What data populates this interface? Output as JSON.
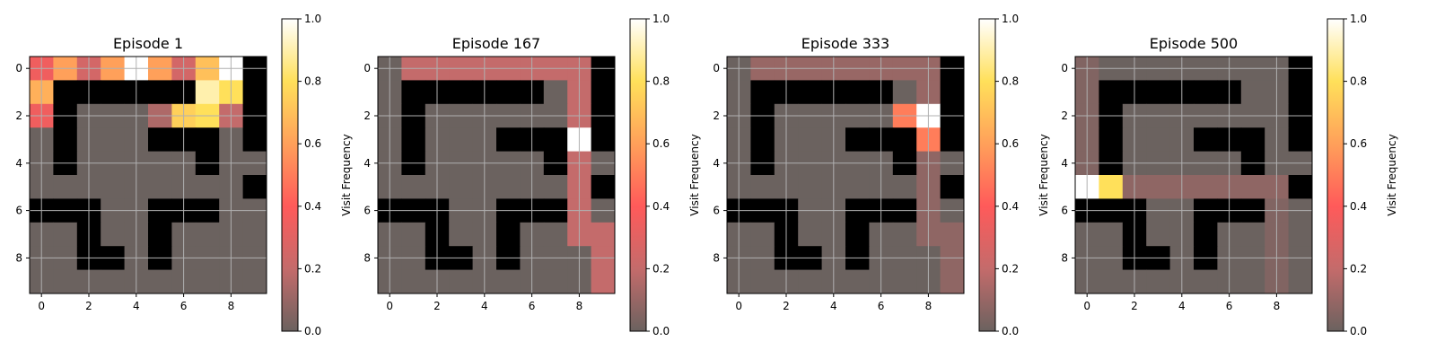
{
  "colors": {
    "wall": "#000000",
    "empty": "#6b625f",
    "colormap": [
      "#6b625f",
      "#c46b6b",
      "#ff5a5a",
      "#ffa05a",
      "#ffe05a",
      "#ffffff"
    ]
  },
  "chart_data": [
    {
      "type": "heatmap",
      "title": "Episode 1",
      "grid_size": 10,
      "xticks": [
        "0",
        "2",
        "4",
        "6",
        "8"
      ],
      "yticks": [
        "0",
        "2",
        "4",
        "6",
        "8"
      ],
      "colorbar": {
        "label": "Visit Frequency",
        "ticks": [
          "0.0",
          "0.2",
          "0.4",
          "0.6",
          "0.8",
          "1.0"
        ],
        "range": [
          0,
          1
        ]
      },
      "walls": [
        [
          0,
          0,
          0,
          0,
          0,
          0,
          0,
          0,
          0,
          1
        ],
        [
          0,
          1,
          1,
          1,
          1,
          1,
          1,
          0,
          0,
          1
        ],
        [
          0,
          1,
          0,
          0,
          0,
          0,
          0,
          0,
          0,
          1
        ],
        [
          0,
          1,
          0,
          0,
          0,
          1,
          1,
          1,
          0,
          1
        ],
        [
          0,
          1,
          0,
          0,
          0,
          0,
          0,
          1,
          0,
          0
        ],
        [
          0,
          0,
          0,
          0,
          0,
          0,
          0,
          0,
          0,
          1
        ],
        [
          1,
          1,
          1,
          0,
          0,
          1,
          1,
          1,
          0,
          0
        ],
        [
          0,
          0,
          1,
          0,
          0,
          1,
          0,
          0,
          0,
          0
        ],
        [
          0,
          0,
          1,
          1,
          0,
          1,
          0,
          0,
          0,
          0
        ],
        [
          0,
          0,
          0,
          0,
          0,
          0,
          0,
          0,
          0,
          0
        ]
      ],
      "values": [
        [
          0.35,
          0.6,
          0.25,
          0.6,
          1.0,
          0.6,
          0.25,
          0.7,
          1.0,
          0
        ],
        [
          0.65,
          0,
          0,
          0,
          0,
          0,
          0,
          0.9,
          0.8,
          0
        ],
        [
          0.35,
          0,
          0,
          0,
          0,
          0.15,
          0.75,
          0.8,
          0.2,
          0
        ],
        [
          0,
          0,
          0,
          0,
          0,
          0,
          0,
          0,
          0,
          0
        ],
        [
          0,
          0,
          0,
          0,
          0,
          0,
          0,
          0,
          0,
          0
        ],
        [
          0,
          0,
          0,
          0,
          0,
          0,
          0,
          0,
          0,
          0
        ],
        [
          0,
          0,
          0,
          0,
          0,
          0,
          0,
          0,
          0,
          0
        ],
        [
          0,
          0,
          0,
          0,
          0,
          0,
          0,
          0,
          0,
          0
        ],
        [
          0,
          0,
          0,
          0,
          0,
          0,
          0,
          0,
          0,
          0
        ],
        [
          0,
          0,
          0,
          0,
          0,
          0,
          0,
          0,
          0,
          0
        ]
      ]
    },
    {
      "type": "heatmap",
      "title": "Episode 167",
      "grid_size": 10,
      "xticks": [
        "0",
        "2",
        "4",
        "6",
        "8"
      ],
      "yticks": [
        "0",
        "2",
        "4",
        "6",
        "8"
      ],
      "colorbar": {
        "label": "Visit Frequency",
        "ticks": [
          "0.0",
          "0.2",
          "0.4",
          "0.6",
          "0.8",
          "1.0"
        ],
        "range": [
          0,
          1
        ]
      },
      "walls": [
        [
          0,
          0,
          0,
          0,
          0,
          0,
          0,
          0,
          0,
          1
        ],
        [
          0,
          1,
          1,
          1,
          1,
          1,
          1,
          0,
          0,
          1
        ],
        [
          0,
          1,
          0,
          0,
          0,
          0,
          0,
          0,
          0,
          1
        ],
        [
          0,
          1,
          0,
          0,
          0,
          1,
          1,
          1,
          0,
          1
        ],
        [
          0,
          1,
          0,
          0,
          0,
          0,
          0,
          1,
          0,
          0
        ],
        [
          0,
          0,
          0,
          0,
          0,
          0,
          0,
          0,
          0,
          1
        ],
        [
          1,
          1,
          1,
          0,
          0,
          1,
          1,
          1,
          0,
          0
        ],
        [
          0,
          0,
          1,
          0,
          0,
          1,
          0,
          0,
          0,
          0
        ],
        [
          0,
          0,
          1,
          1,
          0,
          1,
          0,
          0,
          0,
          0
        ],
        [
          0,
          0,
          0,
          0,
          0,
          0,
          0,
          0,
          0,
          0
        ]
      ],
      "values": [
        [
          0,
          0.2,
          0.2,
          0.2,
          0.2,
          0.2,
          0.2,
          0.2,
          0.2,
          0
        ],
        [
          0,
          0,
          0,
          0,
          0,
          0,
          0,
          0,
          0.2,
          0
        ],
        [
          0,
          0,
          0,
          0,
          0,
          0,
          0,
          0,
          0.2,
          0
        ],
        [
          0,
          0,
          0,
          0,
          0,
          0,
          0,
          0,
          1.0,
          0
        ],
        [
          0,
          0,
          0,
          0,
          0,
          0,
          0,
          0,
          0.2,
          0
        ],
        [
          0,
          0,
          0,
          0,
          0,
          0,
          0,
          0,
          0.2,
          0
        ],
        [
          0,
          0,
          0,
          0,
          0,
          0,
          0,
          0,
          0.2,
          0
        ],
        [
          0,
          0,
          0,
          0,
          0,
          0,
          0,
          0,
          0.2,
          0.2
        ],
        [
          0,
          0,
          0,
          0,
          0,
          0,
          0,
          0,
          0,
          0.2
        ],
        [
          0,
          0,
          0,
          0,
          0,
          0,
          0,
          0,
          0,
          0.2
        ]
      ]
    },
    {
      "type": "heatmap",
      "title": "Episode 333",
      "grid_size": 10,
      "xticks": [
        "0",
        "2",
        "4",
        "6",
        "8"
      ],
      "yticks": [
        "0",
        "2",
        "4",
        "6",
        "8"
      ],
      "colorbar": {
        "label": "Visit Frequency",
        "ticks": [
          "0.0",
          "0.2",
          "0.4",
          "0.6",
          "0.8",
          "1.0"
        ],
        "range": [
          0,
          1
        ]
      },
      "walls": [
        [
          0,
          0,
          0,
          0,
          0,
          0,
          0,
          0,
          0,
          1
        ],
        [
          0,
          1,
          1,
          1,
          1,
          1,
          1,
          0,
          0,
          1
        ],
        [
          0,
          1,
          0,
          0,
          0,
          0,
          0,
          0,
          0,
          1
        ],
        [
          0,
          1,
          0,
          0,
          0,
          1,
          1,
          1,
          0,
          1
        ],
        [
          0,
          1,
          0,
          0,
          0,
          0,
          0,
          1,
          0,
          0
        ],
        [
          0,
          0,
          0,
          0,
          0,
          0,
          0,
          0,
          0,
          1
        ],
        [
          1,
          1,
          1,
          0,
          0,
          1,
          1,
          1,
          0,
          0
        ],
        [
          0,
          0,
          1,
          0,
          0,
          1,
          0,
          0,
          0,
          0
        ],
        [
          0,
          0,
          1,
          1,
          0,
          1,
          0,
          0,
          0,
          0
        ],
        [
          0,
          0,
          0,
          0,
          0,
          0,
          0,
          0,
          0,
          0
        ]
      ],
      "values": [
        [
          0,
          0.1,
          0.1,
          0.1,
          0.1,
          0.1,
          0.1,
          0.1,
          0.1,
          0
        ],
        [
          0,
          0,
          0,
          0,
          0,
          0,
          0,
          0,
          0.1,
          0
        ],
        [
          0,
          0,
          0,
          0,
          0,
          0,
          0,
          0.5,
          1.0,
          0
        ],
        [
          0,
          0,
          0,
          0,
          0,
          0,
          0,
          0,
          0.5,
          0
        ],
        [
          0,
          0,
          0,
          0,
          0,
          0,
          0,
          0,
          0.08,
          0
        ],
        [
          0,
          0,
          0,
          0,
          0,
          0,
          0,
          0,
          0.08,
          0
        ],
        [
          0,
          0,
          0,
          0,
          0,
          0,
          0,
          0,
          0.08,
          0
        ],
        [
          0,
          0,
          0,
          0,
          0,
          0,
          0,
          0,
          0.08,
          0.08
        ],
        [
          0,
          0,
          0,
          0,
          0,
          0,
          0,
          0,
          0,
          0.08
        ],
        [
          0,
          0,
          0,
          0,
          0,
          0,
          0,
          0,
          0,
          0.08
        ]
      ]
    },
    {
      "type": "heatmap",
      "title": "Episode 500",
      "grid_size": 10,
      "xticks": [
        "0",
        "2",
        "4",
        "6",
        "8"
      ],
      "yticks": [
        "0",
        "2",
        "4",
        "6",
        "8"
      ],
      "colorbar": {
        "label": "Visit Frequency",
        "ticks": [
          "0.0",
          "0.2",
          "0.4",
          "0.6",
          "0.8",
          "1.0"
        ],
        "range": [
          0,
          1
        ]
      },
      "walls": [
        [
          0,
          0,
          0,
          0,
          0,
          0,
          0,
          0,
          0,
          1
        ],
        [
          0,
          1,
          1,
          1,
          1,
          1,
          1,
          0,
          0,
          1
        ],
        [
          0,
          1,
          0,
          0,
          0,
          0,
          0,
          0,
          0,
          1
        ],
        [
          0,
          1,
          0,
          0,
          0,
          1,
          1,
          1,
          0,
          1
        ],
        [
          0,
          1,
          0,
          0,
          0,
          0,
          0,
          1,
          0,
          0
        ],
        [
          0,
          0,
          0,
          0,
          0,
          0,
          0,
          0,
          0,
          1
        ],
        [
          1,
          1,
          1,
          0,
          0,
          1,
          1,
          1,
          0,
          0
        ],
        [
          0,
          0,
          1,
          0,
          0,
          1,
          0,
          0,
          0,
          0
        ],
        [
          0,
          0,
          1,
          1,
          0,
          1,
          0,
          0,
          0,
          0
        ],
        [
          0,
          0,
          0,
          0,
          0,
          0,
          0,
          0,
          0,
          0
        ]
      ],
      "values": [
        [
          0.05,
          0,
          0,
          0,
          0,
          0,
          0,
          0,
          0,
          0
        ],
        [
          0.05,
          0,
          0,
          0,
          0,
          0,
          0,
          0,
          0,
          0
        ],
        [
          0.05,
          0,
          0,
          0,
          0,
          0,
          0,
          0,
          0,
          0
        ],
        [
          0.05,
          0,
          0,
          0,
          0,
          0,
          0,
          0,
          0,
          0
        ],
        [
          0.05,
          0,
          0,
          0,
          0,
          0,
          0,
          0,
          0,
          0
        ],
        [
          1.0,
          0.8,
          0.08,
          0.08,
          0.08,
          0.08,
          0.08,
          0.08,
          0.08,
          0
        ],
        [
          0,
          0,
          0,
          0,
          0,
          0,
          0,
          0,
          0.05,
          0
        ],
        [
          0,
          0,
          0,
          0,
          0,
          0,
          0,
          0,
          0.05,
          0
        ],
        [
          0,
          0,
          0,
          0,
          0,
          0,
          0,
          0,
          0.05,
          0
        ],
        [
          0,
          0,
          0,
          0,
          0,
          0,
          0,
          0,
          0.05,
          0
        ]
      ]
    }
  ]
}
